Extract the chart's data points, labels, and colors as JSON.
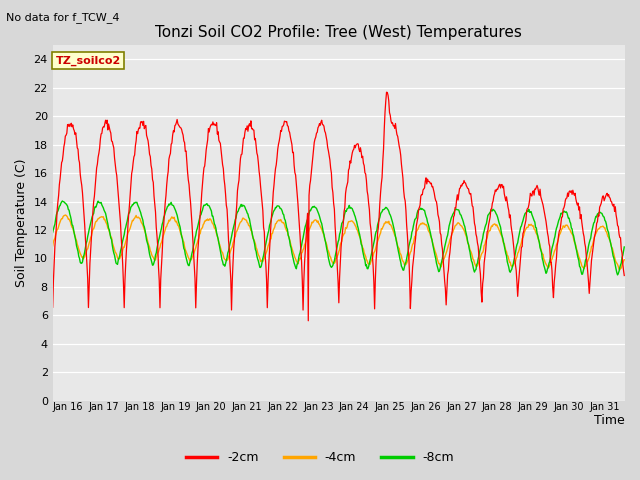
{
  "title": "Tonzi Soil CO2 Profile: Tree (West) Temperatures",
  "subtitle": "No data for f_TCW_4",
  "xlabel": "Time",
  "ylabel": "Soil Temperature (C)",
  "ylim": [
    0,
    25
  ],
  "yticks": [
    0,
    2,
    4,
    6,
    8,
    10,
    12,
    14,
    16,
    18,
    20,
    22,
    24
  ],
  "xtick_labels": [
    "Jan 16",
    "Jan 17",
    "Jan 18",
    "Jan 19",
    "Jan 20",
    "Jan 21",
    "Jan 22",
    "Jan 23",
    "Jan 24",
    "Jan 25",
    "Jan 26",
    "Jan 27",
    "Jan 28",
    "Jan 29",
    "Jan 30",
    "Jan 31"
  ],
  "color_2cm": "#ff0000",
  "color_4cm": "#ffa500",
  "color_8cm": "#00cc00",
  "legend_label_2cm": "-2cm",
  "legend_label_4cm": "-4cm",
  "legend_label_8cm": "-8cm",
  "inset_label": "TZ_soilco2",
  "bg_color": "#e8e8e8",
  "fig_bg_color": "#d8d8d8",
  "grid_color": "#ffffff",
  "linewidth_thin": 0.9
}
